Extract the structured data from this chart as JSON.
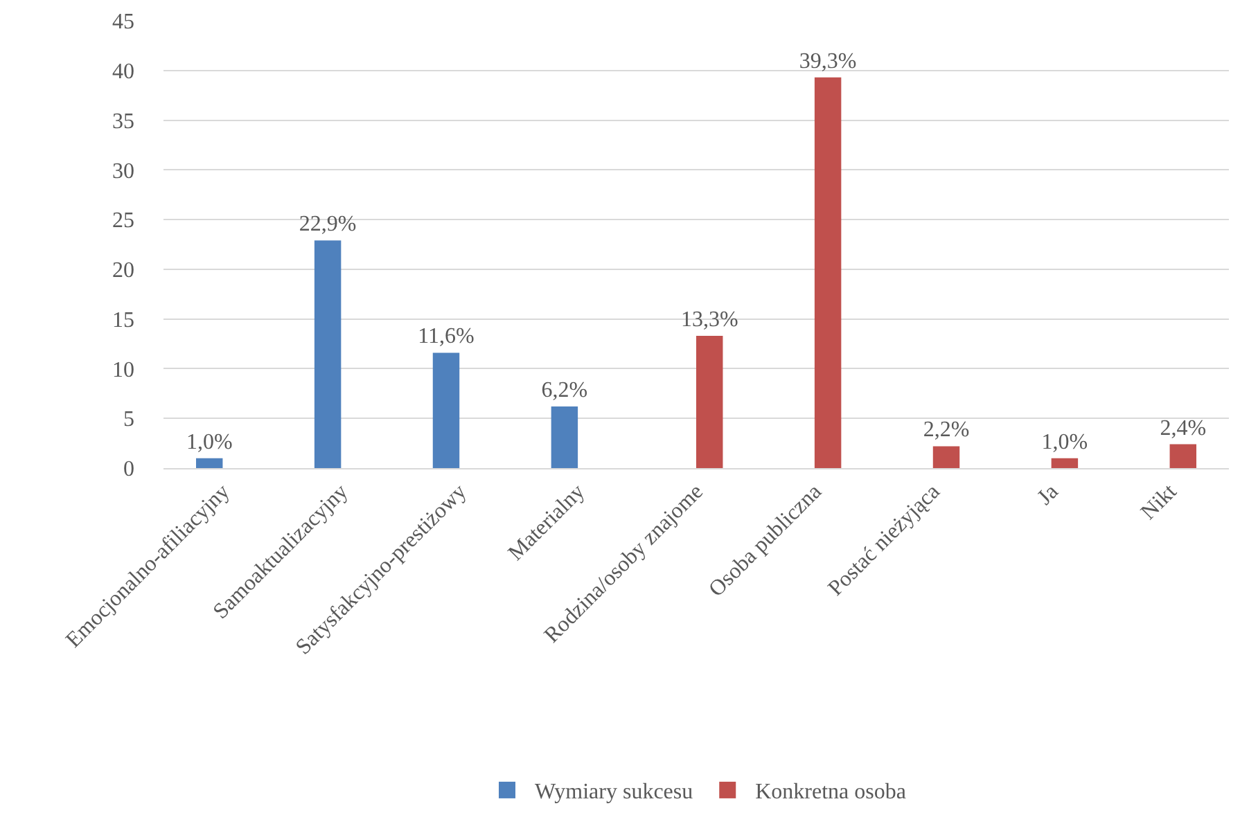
{
  "chart_data": {
    "type": "bar",
    "categories": [
      "Emocjonalno-afiliacyjny",
      "Samoaktualizacyjny",
      "Satysfakcyjno-prestiżowy",
      "Materialny",
      "Rodzina/osoby znajome",
      "Osoba publiczna",
      "Postać nieżyjąca",
      "Ja",
      "Nikt"
    ],
    "series": [
      {
        "name": "Wymiary sukcesu",
        "color": "#4f81bd",
        "values": [
          1.0,
          22.9,
          11.6,
          6.2,
          null,
          null,
          null,
          null,
          null
        ],
        "value_labels": [
          "1,0%",
          "22,9%",
          "11,6%",
          "6,2%",
          null,
          null,
          null,
          null,
          null
        ]
      },
      {
        "name": "Konkretna osoba",
        "color": "#c0504d",
        "values": [
          null,
          null,
          null,
          null,
          13.3,
          39.3,
          2.2,
          1.0,
          2.4
        ],
        "value_labels": [
          null,
          null,
          null,
          null,
          "13,3%",
          "39,3%",
          "2,2%",
          "1,0%",
          "2,4%"
        ]
      }
    ],
    "ylim": [
      0,
      45
    ],
    "yticks": [
      0,
      5,
      10,
      15,
      20,
      25,
      30,
      35,
      40,
      45
    ],
    "grid": "y",
    "legend": "bottom"
  }
}
